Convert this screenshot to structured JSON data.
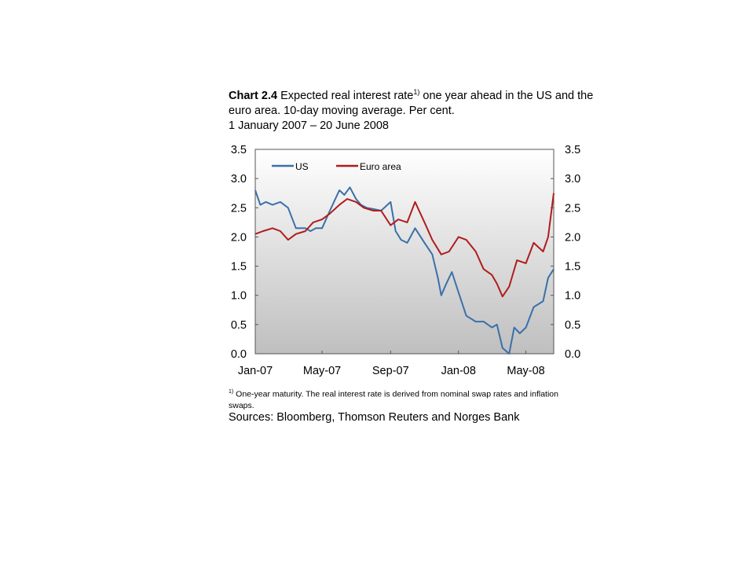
{
  "title": {
    "label": "Chart 2.4",
    "text_part1": " Expected real interest rate",
    "superscript": "1)",
    "text_part2": " one year ahead in the US and the euro area. 10-day moving average. Per cent.",
    "date_range": "1 January 2007 –  20 June 2008"
  },
  "footnote": {
    "marker": "1)",
    "text": " One-year maturity. The real interest rate is derived from nominal swap rates and inflation swaps."
  },
  "sources": "Sources: Bloomberg, Thomson Reuters and Norges Bank",
  "colors": {
    "us": "#3a70a9",
    "euro": "#b01c1c",
    "plot_bg_top": "#ffffff",
    "plot_bg_bottom": "#bfbfbf"
  },
  "chart_data": {
    "type": "line",
    "x_start": "2007-01-01",
    "x_end": "2008-06-20",
    "x_tick_labels": [
      "Jan-07",
      "May-07",
      "Sep-07",
      "Jan-08",
      "May-08"
    ],
    "x_tick_dates": [
      "2007-01-01",
      "2007-05-01",
      "2007-09-01",
      "2008-01-01",
      "2008-05-01"
    ],
    "ylim": [
      0.0,
      3.5
    ],
    "y_ticks": [
      "0.0",
      "0.5",
      "1.0",
      "1.5",
      "2.0",
      "2.5",
      "3.0",
      "3.5"
    ],
    "legend_position": "top-left",
    "grid": false,
    "series": [
      {
        "name": "US",
        "color": "#3a70a9",
        "x": [
          "2007-01-01",
          "2007-01-10",
          "2007-01-20",
          "2007-02-01",
          "2007-02-15",
          "2007-03-01",
          "2007-03-15",
          "2007-04-01",
          "2007-04-10",
          "2007-04-20",
          "2007-05-01",
          "2007-05-15",
          "2007-06-01",
          "2007-06-10",
          "2007-06-20",
          "2007-07-01",
          "2007-07-10",
          "2007-07-20",
          "2007-08-01",
          "2007-08-15",
          "2007-09-01",
          "2007-09-10",
          "2007-09-20",
          "2007-10-01",
          "2007-10-15",
          "2007-11-01",
          "2007-11-15",
          "2007-11-25",
          "2007-12-01",
          "2007-12-10",
          "2007-12-20",
          "2008-01-01",
          "2008-01-15",
          "2008-02-01",
          "2008-02-15",
          "2008-03-01",
          "2008-03-10",
          "2008-03-20",
          "2008-04-01",
          "2008-04-10",
          "2008-04-20",
          "2008-05-01",
          "2008-05-15",
          "2008-06-01",
          "2008-06-10",
          "2008-06-20"
        ],
        "values": [
          2.8,
          2.55,
          2.6,
          2.55,
          2.6,
          2.5,
          2.15,
          2.15,
          2.1,
          2.15,
          2.15,
          2.45,
          2.8,
          2.72,
          2.85,
          2.65,
          2.55,
          2.5,
          2.48,
          2.45,
          2.6,
          2.1,
          1.95,
          1.9,
          2.15,
          1.9,
          1.7,
          1.3,
          1.0,
          1.2,
          1.4,
          1.05,
          0.65,
          0.55,
          0.55,
          0.45,
          0.5,
          0.1,
          0.0,
          0.45,
          0.35,
          0.45,
          0.8,
          0.9,
          1.3,
          1.45
        ]
      },
      {
        "name": "Euro area",
        "color": "#b01c1c",
        "x": [
          "2007-01-01",
          "2007-01-15",
          "2007-02-01",
          "2007-02-15",
          "2007-03-01",
          "2007-03-15",
          "2007-04-01",
          "2007-04-15",
          "2007-05-01",
          "2007-05-15",
          "2007-06-01",
          "2007-06-15",
          "2007-07-01",
          "2007-07-15",
          "2007-08-01",
          "2007-08-15",
          "2007-09-01",
          "2007-09-15",
          "2007-10-01",
          "2007-10-15",
          "2007-11-01",
          "2007-11-15",
          "2007-12-01",
          "2007-12-15",
          "2008-01-01",
          "2008-01-15",
          "2008-02-01",
          "2008-02-15",
          "2008-03-01",
          "2008-03-10",
          "2008-03-20",
          "2008-04-01",
          "2008-04-15",
          "2008-05-01",
          "2008-05-15",
          "2008-06-01",
          "2008-06-10",
          "2008-06-20"
        ],
        "values": [
          2.05,
          2.1,
          2.15,
          2.1,
          1.95,
          2.05,
          2.1,
          2.25,
          2.3,
          2.4,
          2.55,
          2.65,
          2.6,
          2.5,
          2.45,
          2.45,
          2.2,
          2.3,
          2.25,
          2.6,
          2.25,
          1.95,
          1.7,
          1.75,
          2.0,
          1.95,
          1.75,
          1.45,
          1.35,
          1.2,
          0.98,
          1.15,
          1.6,
          1.55,
          1.9,
          1.75,
          2.0,
          2.75
        ]
      }
    ]
  }
}
